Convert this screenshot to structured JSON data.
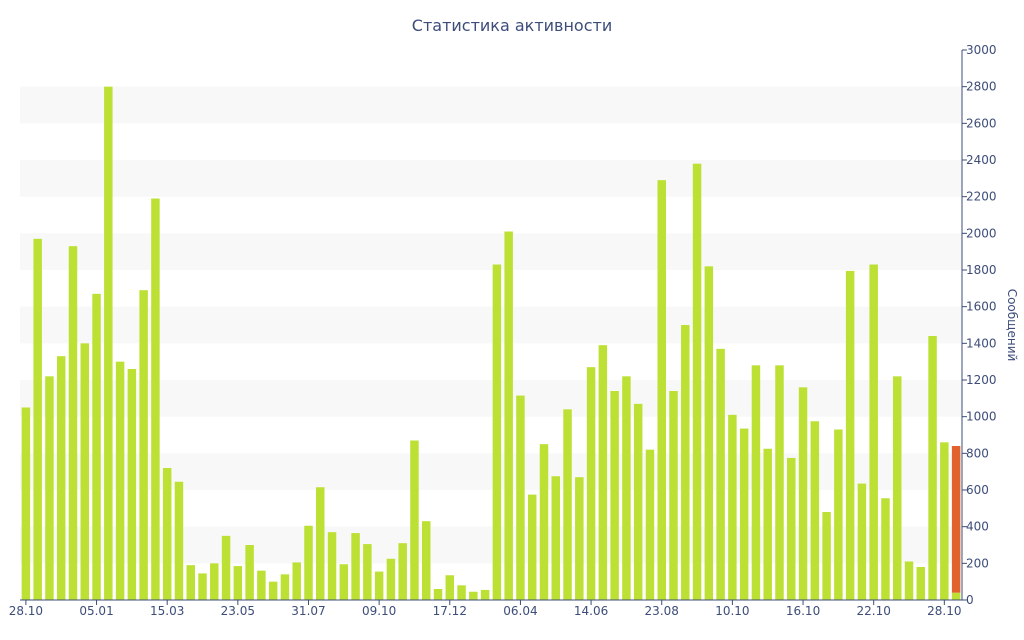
{
  "chart_data": {
    "type": "bar",
    "title": "Статистика активности",
    "ylabel": "Сообщений",
    "xlabel": "",
    "ylim": [
      0,
      3000
    ],
    "yticks": [
      0,
      200,
      400,
      600,
      800,
      1000,
      1200,
      1400,
      1600,
      1800,
      2000,
      2200,
      2400,
      2600,
      2800,
      3000
    ],
    "x_tick_labels": [
      {
        "index": 0,
        "label": "28.10"
      },
      {
        "index": 6,
        "label": "05.01"
      },
      {
        "index": 12,
        "label": "15.03"
      },
      {
        "index": 18,
        "label": "23.05"
      },
      {
        "index": 24,
        "label": "31.07"
      },
      {
        "index": 30,
        "label": "09.10"
      },
      {
        "index": 36,
        "label": "17.12"
      },
      {
        "index": 42,
        "label": "06.04"
      },
      {
        "index": 48,
        "label": "14.06"
      },
      {
        "index": 54,
        "label": "23.08"
      },
      {
        "index": 60,
        "label": "10.10"
      },
      {
        "index": 66,
        "label": "16.10"
      },
      {
        "index": 72,
        "label": "22.10"
      },
      {
        "index": 78,
        "label": "28.10"
      }
    ],
    "values": [
      1050,
      1970,
      1220,
      1330,
      1930,
      1400,
      1670,
      2800,
      1300,
      1260,
      1690,
      2190,
      720,
      645,
      190,
      145,
      200,
      350,
      185,
      300,
      160,
      100,
      140,
      205,
      405,
      615,
      370,
      195,
      365,
      305,
      155,
      225,
      310,
      870,
      430,
      60,
      135,
      80,
      45,
      55,
      1830,
      2010,
      1115,
      575,
      850,
      675,
      1040,
      670,
      1270,
      1390,
      1140,
      1220,
      1070,
      820,
      2290,
      1140,
      1500,
      2380,
      1820,
      1370,
      1010,
      935,
      1280,
      825,
      1280,
      775,
      1160,
      975,
      480,
      930,
      1795,
      635,
      1830,
      555,
      1220,
      210,
      180,
      1440,
      860,
      840
    ],
    "last_bar_split": 40,
    "grid": "alternating-bands",
    "colors": {
      "bar": "#bce034",
      "highlight": "#e0632e",
      "axis": "#3d4d7a",
      "band": "#f8f8f8",
      "text": "#3d4d7a"
    }
  }
}
